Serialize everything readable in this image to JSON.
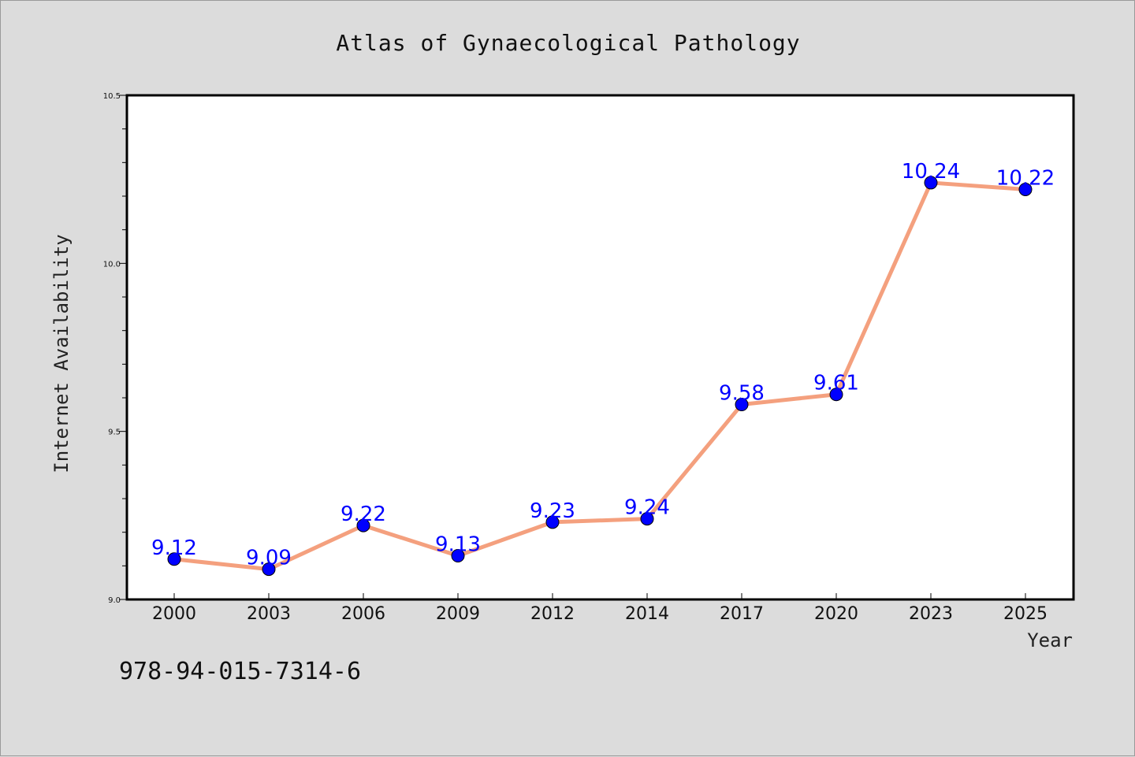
{
  "chart_data": {
    "type": "line",
    "title": "Atlas of Gynaecological Pathology",
    "xlabel": "Year",
    "ylabel": "Internet Availability",
    "categories": [
      "2000",
      "2003",
      "2006",
      "2009",
      "2012",
      "2014",
      "2017",
      "2020",
      "2023",
      "2025"
    ],
    "series": [
      {
        "values": [
          9.12,
          9.09,
          9.22,
          9.13,
          9.23,
          9.24,
          9.58,
          9.61,
          10.24,
          10.22
        ],
        "labels": [
          "9.12",
          "9.09",
          "9.22",
          "9.13",
          "9.23",
          "9.24",
          "9.58",
          "9.61",
          "10.24",
          "10.22"
        ],
        "line_color": "#f4a07e",
        "marker_color": "#0000ff",
        "label_color": "#0000ff"
      }
    ],
    "ylim": [
      9.0,
      10.5
    ],
    "yticks": [
      "9.0",
      "9.5",
      "10.0",
      "10.5"
    ],
    "grid": false,
    "legend": "none",
    "background": "#dcdcdc",
    "plot_background": "#ffffff"
  },
  "footer": {
    "isbn": "978-94-015-7314-6"
  }
}
